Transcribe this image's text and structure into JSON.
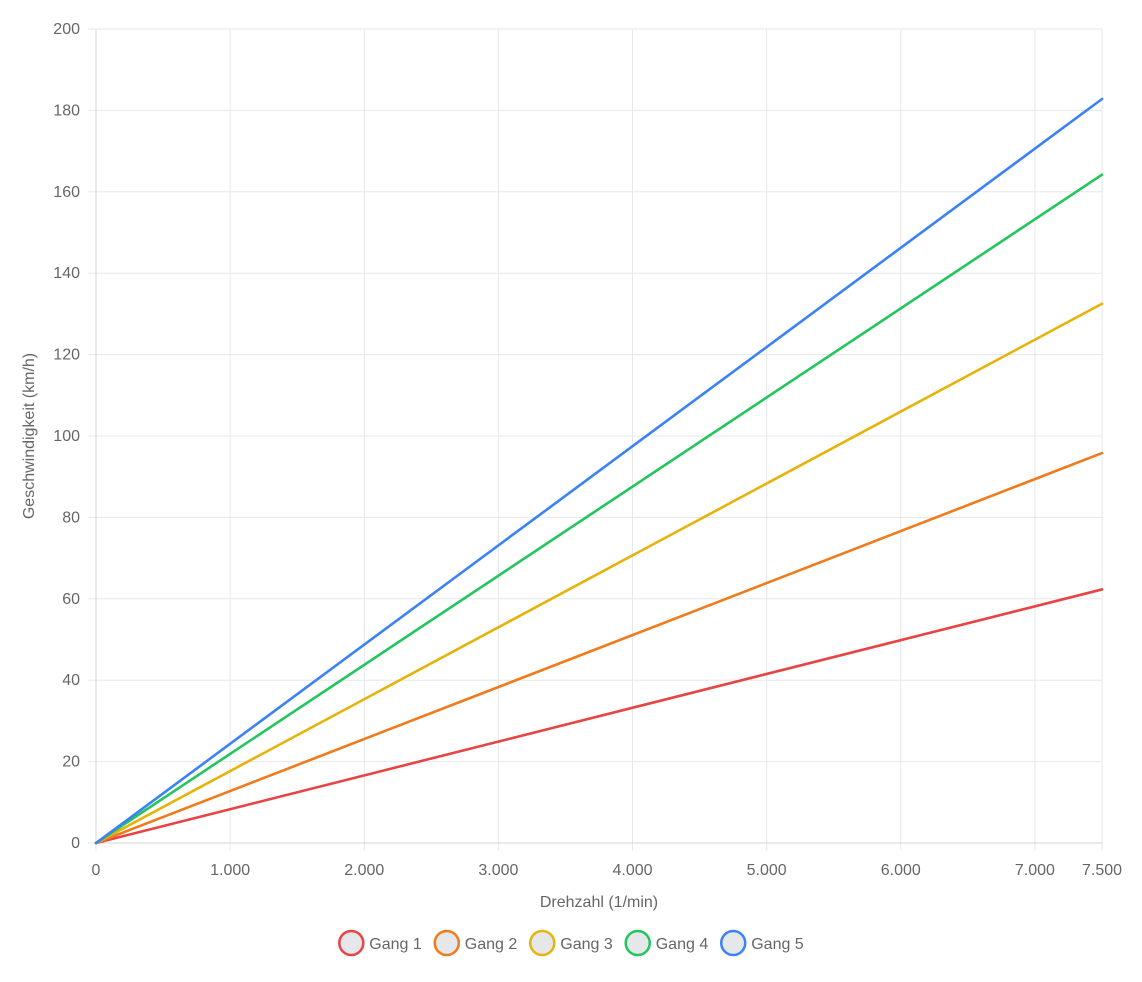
{
  "chart_data": {
    "type": "line",
    "title": "",
    "xlabel": "Drehzahl (1/min)",
    "ylabel": "Geschwindigkeit (km/h)",
    "xlim": [
      0,
      7500
    ],
    "ylim": [
      0,
      200
    ],
    "grid": true,
    "legend_position": "bottom",
    "x_ticks": [
      {
        "value": 0,
        "label": "0"
      },
      {
        "value": 1000,
        "label": "1.000"
      },
      {
        "value": 2000,
        "label": "2.000"
      },
      {
        "value": 3000,
        "label": "3.000"
      },
      {
        "value": 4000,
        "label": "4.000"
      },
      {
        "value": 5000,
        "label": "5.000"
      },
      {
        "value": 6000,
        "label": "6.000"
      },
      {
        "value": 7000,
        "label": "7.000"
      },
      {
        "value": 7500,
        "label": "7.500"
      }
    ],
    "y_ticks": [
      {
        "value": 0,
        "label": "0"
      },
      {
        "value": 20,
        "label": "20"
      },
      {
        "value": 40,
        "label": "40"
      },
      {
        "value": 60,
        "label": "60"
      },
      {
        "value": 80,
        "label": "80"
      },
      {
        "value": 100,
        "label": "100"
      },
      {
        "value": 120,
        "label": "120"
      },
      {
        "value": 140,
        "label": "140"
      },
      {
        "value": 160,
        "label": "160"
      },
      {
        "value": 180,
        "label": "180"
      },
      {
        "value": 200,
        "label": "200"
      }
    ],
    "series": [
      {
        "name": "Gang 1",
        "color": "#e84444",
        "x": [
          0,
          7500
        ],
        "y": [
          0,
          62.3
        ]
      },
      {
        "name": "Gang 2",
        "color": "#f07a1c",
        "x": [
          0,
          7500
        ],
        "y": [
          0,
          95.8
        ]
      },
      {
        "name": "Gang 3",
        "color": "#e6b30b",
        "x": [
          0,
          7500
        ],
        "y": [
          0,
          132.5
        ]
      },
      {
        "name": "Gang 4",
        "color": "#22c55e",
        "x": [
          0,
          7500
        ],
        "y": [
          0,
          164.2
        ]
      },
      {
        "name": "Gang 5",
        "color": "#3b82f6",
        "x": [
          0,
          7500
        ],
        "y": [
          0,
          182.8
        ]
      }
    ]
  }
}
